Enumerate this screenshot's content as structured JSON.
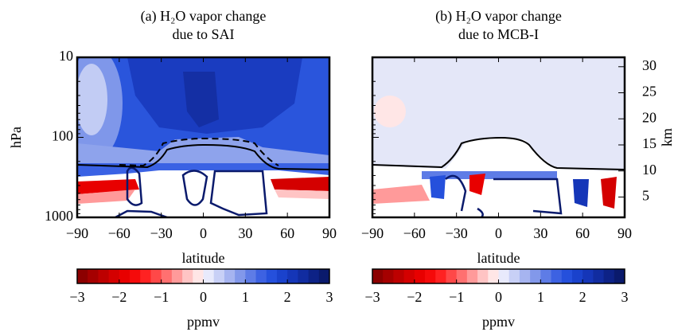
{
  "chart_data": [
    {
      "type": "contour",
      "title": [
        "(a) H₂O vapor change",
        "due to SAI"
      ],
      "xlabel": "latitude",
      "ylabel": "hPa",
      "xlim": [
        -90,
        90
      ],
      "xticks": [
        {
          "value": -90,
          "label": "−90"
        },
        {
          "value": -60,
          "label": "−60"
        },
        {
          "value": -30,
          "label": "−30"
        },
        0,
        30,
        60,
        90
      ],
      "ylim": [
        1000,
        10
      ],
      "yticks": [
        10,
        100,
        1000
      ],
      "log_y": true,
      "ytick_labels": true,
      "colorbar": {
        "label": "ppmv",
        "lim": [
          -3,
          3
        ],
        "ticks": [
          {
            "value": -3,
            "label": "−3"
          },
          {
            "value": -2,
            "label": "−2"
          },
          {
            "value": -1,
            "label": "−1"
          },
          0,
          1,
          2,
          3
        ],
        "colors": [
          "#8c0000",
          "#a50000",
          "#bd0000",
          "#d40000",
          "#e80000",
          "#f50a0a",
          "#ff2222",
          "#ff4848",
          "#ff7070",
          "#ff9a9a",
          "#ffc4c4",
          "#ffe6e6",
          "#e8eafc",
          "#c8d0f6",
          "#a6b4f0",
          "#8298ea",
          "#5e7ce6",
          "#3d62e2",
          "#2550dc",
          "#1a42cc",
          "#1536b8",
          "#112ca0",
          "#0d2286",
          "#0a1a6c"
        ]
      }
    },
    {
      "type": "contour",
      "title": [
        "(b) H₂O vapor change",
        "due to MCB-I"
      ],
      "xlabel": "latitude",
      "y2label": "km",
      "xlim": [
        -90,
        90
      ],
      "xticks": [
        {
          "value": -90,
          "label": "−90"
        },
        {
          "value": -60,
          "label": "−60"
        },
        {
          "value": -30,
          "label": "−30"
        },
        0,
        30,
        60,
        90
      ],
      "ylim": [
        1000,
        10
      ],
      "yticks": [
        10,
        100,
        1000
      ],
      "log_y": true,
      "ytick_labels": false,
      "y2lim": [
        1.1,
        31.8
      ],
      "y2ticks": [
        5,
        10,
        15,
        20,
        25,
        30
      ],
      "colorbar": {
        "label": "ppmv",
        "lim": [
          -3,
          3
        ],
        "ticks": [
          {
            "value": -3,
            "label": "−3"
          },
          {
            "value": -2,
            "label": "−2"
          },
          {
            "value": -1,
            "label": "−1"
          },
          0,
          1,
          2,
          3
        ],
        "colors": [
          "#8c0000",
          "#a50000",
          "#bd0000",
          "#d40000",
          "#e80000",
          "#f50a0a",
          "#ff2222",
          "#ff4848",
          "#ff7070",
          "#ff9a9a",
          "#ffc4c4",
          "#ffe6e6",
          "#e8eafc",
          "#c8d0f6",
          "#a6b4f0",
          "#8298ea",
          "#5e7ce6",
          "#3d62e2",
          "#2550dc",
          "#1a42cc",
          "#1536b8",
          "#112ca0",
          "#0d2286",
          "#0a1a6c"
        ]
      }
    }
  ]
}
